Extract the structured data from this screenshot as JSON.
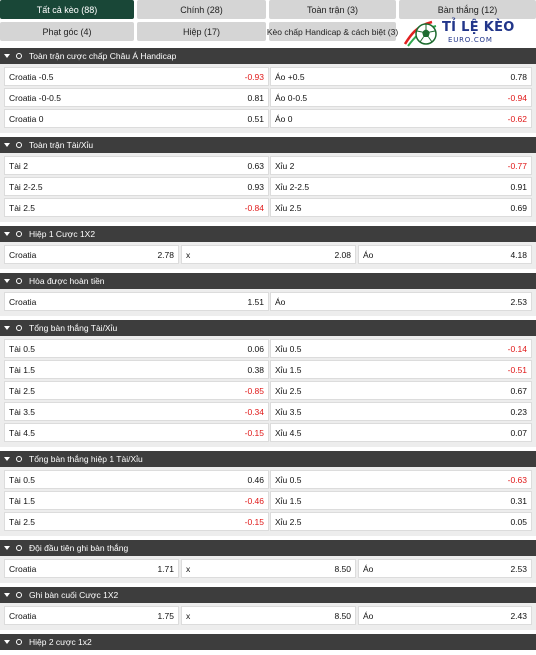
{
  "tabs": [
    {
      "label": "Tất cả kèo (88)",
      "active": true
    },
    {
      "label": "Chính (28)",
      "active": false
    },
    {
      "label": "Toàn trận (3)",
      "active": false
    },
    {
      "label": "Bàn thắng (12)",
      "active": false
    },
    {
      "label": "Phạt góc (4)",
      "active": false
    },
    {
      "label": "Hiệp (17)",
      "active": false
    },
    {
      "label": "Kèo chấp Handicap & cách biệt (3)",
      "active": false
    }
  ],
  "logo": {
    "title": "TỈ LỆ KÈO",
    "subtitle": "EURO.COM"
  },
  "colors": {
    "header_bg": "#3d3d3d",
    "active_tab": "#194737",
    "negative": "#e01818"
  },
  "sections": [
    {
      "title": "Toàn trận cược chấp Châu Á Handicap",
      "columns": 2,
      "rows": [
        [
          {
            "label": "Croatia",
            "line": "-0.5",
            "odd": "-0.93"
          },
          {
            "label": "Áo",
            "line": "+0.5",
            "odd": "0.78"
          }
        ],
        [
          {
            "label": "Croatia",
            "line": "-0-0.5",
            "odd": "0.81"
          },
          {
            "label": "Áo",
            "line": "0-0.5",
            "odd": "-0.94"
          }
        ],
        [
          {
            "label": "Croatia",
            "line": "0",
            "odd": "0.51"
          },
          {
            "label": "Áo",
            "line": "0",
            "odd": "-0.62"
          }
        ]
      ]
    },
    {
      "title": "Toàn trận Tài/Xỉu",
      "columns": 2,
      "rows": [
        [
          {
            "label": "Tài",
            "line": "2",
            "odd": "0.63"
          },
          {
            "label": "Xỉu",
            "line": "2",
            "odd": "-0.77"
          }
        ],
        [
          {
            "label": "Tài",
            "line": "2-2.5",
            "odd": "0.93"
          },
          {
            "label": "Xỉu",
            "line": "2-2.5",
            "odd": "0.91"
          }
        ],
        [
          {
            "label": "Tài",
            "line": "2.5",
            "odd": "-0.84"
          },
          {
            "label": "Xỉu",
            "line": "2.5",
            "odd": "0.69"
          }
        ]
      ]
    },
    {
      "title": "Hiệp 1 Cược 1X2",
      "columns": 3,
      "rows": [
        [
          {
            "label": "Croatia",
            "line": "",
            "odd": "2.78"
          },
          {
            "label": "x",
            "line": "",
            "odd": "2.08"
          },
          {
            "label": "Áo",
            "line": "",
            "odd": "4.18"
          }
        ]
      ]
    },
    {
      "title": "Hòa được hoàn tiền",
      "columns": 2,
      "rows": [
        [
          {
            "label": "Croatia",
            "line": "",
            "odd": "1.51"
          },
          {
            "label": "Áo",
            "line": "",
            "odd": "2.53"
          }
        ]
      ]
    },
    {
      "title": "Tổng bàn thắng Tài/Xỉu",
      "columns": 2,
      "rows": [
        [
          {
            "label": "Tài",
            "line": "0.5",
            "odd": "0.06"
          },
          {
            "label": "Xỉu",
            "line": "0.5",
            "odd": "-0.14"
          }
        ],
        [
          {
            "label": "Tài",
            "line": "1.5",
            "odd": "0.38"
          },
          {
            "label": "Xỉu",
            "line": "1.5",
            "odd": "-0.51"
          }
        ],
        [
          {
            "label": "Tài",
            "line": "2.5",
            "odd": "-0.85"
          },
          {
            "label": "Xỉu",
            "line": "2.5",
            "odd": "0.67"
          }
        ],
        [
          {
            "label": "Tài",
            "line": "3.5",
            "odd": "-0.34"
          },
          {
            "label": "Xỉu",
            "line": "3.5",
            "odd": "0.23"
          }
        ],
        [
          {
            "label": "Tài",
            "line": "4.5",
            "odd": "-0.15"
          },
          {
            "label": "Xỉu",
            "line": "4.5",
            "odd": "0.07"
          }
        ]
      ]
    },
    {
      "title": "Tổng bàn thắng hiệp 1 Tài/Xỉu",
      "columns": 2,
      "rows": [
        [
          {
            "label": "Tài",
            "line": "0.5",
            "odd": "0.46"
          },
          {
            "label": "Xỉu",
            "line": "0.5",
            "odd": "-0.63"
          }
        ],
        [
          {
            "label": "Tài",
            "line": "1.5",
            "odd": "-0.46"
          },
          {
            "label": "Xỉu",
            "line": "1.5",
            "odd": "0.31"
          }
        ],
        [
          {
            "label": "Tài",
            "line": "2.5",
            "odd": "-0.15"
          },
          {
            "label": "Xỉu",
            "line": "2.5",
            "odd": "0.05"
          }
        ]
      ]
    },
    {
      "title": "Đội đầu tiên ghi bàn thắng",
      "columns": 3,
      "rows": [
        [
          {
            "label": "Croatia",
            "line": "",
            "odd": "1.71"
          },
          {
            "label": "x",
            "line": "",
            "odd": "8.50"
          },
          {
            "label": "Áo",
            "line": "",
            "odd": "2.53"
          }
        ]
      ]
    },
    {
      "title": "Ghi bàn cuối Cược 1X2",
      "columns": 3,
      "rows": [
        [
          {
            "label": "Croatia",
            "line": "",
            "odd": "1.75"
          },
          {
            "label": "x",
            "line": "",
            "odd": "8.50"
          },
          {
            "label": "Áo",
            "line": "",
            "odd": "2.43"
          }
        ]
      ]
    },
    {
      "title": "Hiệp 2 cược 1x2",
      "columns": 3,
      "rows": []
    }
  ]
}
